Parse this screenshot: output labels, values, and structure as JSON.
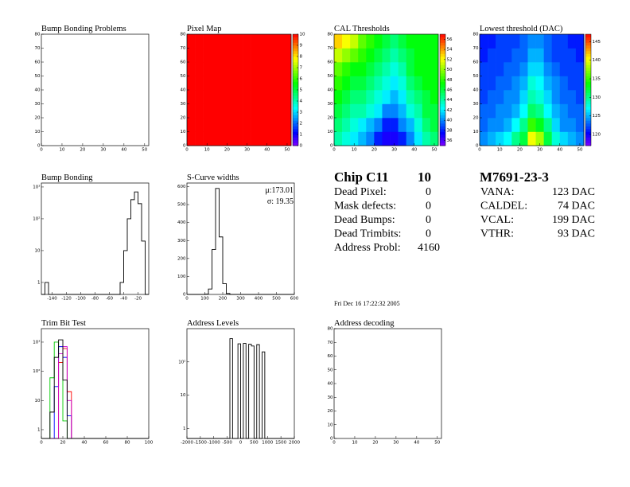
{
  "chart_data": [
    {
      "type": "heatmap",
      "title": "Bump Bonding Problems",
      "xlim": [
        0,
        52
      ],
      "ylim": [
        0,
        80
      ],
      "xticks": [
        0,
        10,
        20,
        30,
        40,
        50
      ],
      "yticks": [
        0,
        10,
        20,
        30,
        40,
        50,
        60,
        70,
        80
      ]
    },
    {
      "type": "heatmap",
      "title": "Pixel Map",
      "xlim": [
        0,
        52
      ],
      "ylim": [
        0,
        80
      ],
      "xticks": [
        0,
        10,
        20,
        30,
        40,
        50
      ],
      "yticks": [
        0,
        10,
        20,
        30,
        40,
        50,
        60,
        70,
        80
      ],
      "xbins": [
        0,
        4,
        8,
        12,
        16,
        20,
        24,
        28,
        32,
        36,
        40,
        44,
        48,
        52
      ],
      "ybins": [
        0,
        10,
        20,
        30,
        40,
        50,
        60,
        70,
        80
      ],
      "z": [
        [
          10,
          10,
          10,
          10,
          10,
          10,
          10,
          10,
          10,
          10,
          10,
          10,
          10
        ],
        [
          10,
          10,
          10,
          10,
          10,
          10,
          10,
          10,
          10,
          10,
          10,
          10,
          10
        ],
        [
          10,
          10,
          10,
          10,
          10,
          10,
          10,
          10,
          10,
          10,
          10,
          10,
          10
        ],
        [
          10,
          10,
          10,
          10,
          10,
          10,
          10,
          10,
          10,
          10,
          10,
          10,
          10
        ],
        [
          10,
          10,
          10,
          10,
          10,
          10,
          10,
          10,
          10,
          10,
          10,
          10,
          10
        ],
        [
          10,
          10,
          10,
          10,
          10,
          10,
          10,
          10,
          10,
          10,
          10,
          10,
          10
        ],
        [
          10,
          10,
          10,
          10,
          10,
          10,
          10,
          10,
          10,
          10,
          10,
          10,
          10
        ],
        [
          10,
          10,
          10,
          10,
          10,
          10,
          10,
          10,
          10,
          10,
          10,
          10,
          10
        ]
      ],
      "zlim": [
        0,
        10
      ],
      "zticks": [
        0,
        1,
        2,
        3,
        4,
        5,
        6,
        7,
        8,
        9,
        10
      ]
    },
    {
      "type": "heatmap",
      "title": "CAL Thresholds",
      "xlim": [
        0,
        52
      ],
      "ylim": [
        0,
        80
      ],
      "xticks": [
        0,
        10,
        20,
        30,
        40,
        50
      ],
      "yticks": [
        0,
        10,
        20,
        30,
        40,
        50,
        60,
        70,
        80
      ],
      "xbins": [
        0,
        4,
        8,
        12,
        16,
        20,
        24,
        28,
        32,
        36,
        40,
        44,
        48,
        52
      ],
      "ybins": [
        0,
        10,
        20,
        30,
        40,
        50,
        60,
        70,
        80
      ],
      "z": [
        [
          44,
          43,
          42,
          41,
          40,
          38,
          37,
          37,
          38,
          40,
          42,
          44,
          45
        ],
        [
          45,
          44,
          43,
          42,
          41,
          40,
          38,
          38,
          40,
          41,
          43,
          45,
          46
        ],
        [
          46,
          45,
          44,
          44,
          43,
          42,
          40,
          40,
          41,
          43,
          44,
          46,
          46
        ],
        [
          47,
          46,
          45,
          45,
          44,
          43,
          42,
          41,
          42,
          44,
          45,
          46,
          47
        ],
        [
          48,
          47,
          46,
          46,
          45,
          44,
          43,
          42,
          43,
          45,
          46,
          47,
          47
        ],
        [
          49,
          48,
          47,
          47,
          46,
          45,
          44,
          43,
          44,
          46,
          47,
          47,
          47
        ],
        [
          51,
          50,
          49,
          48,
          47,
          46,
          45,
          44,
          45,
          46,
          47,
          47,
          47
        ],
        [
          53,
          52,
          51,
          49,
          48,
          47,
          46,
          45,
          46,
          47,
          47,
          47,
          47
        ]
      ],
      "zlim": [
        35,
        57
      ],
      "zticks": [
        36,
        38,
        40,
        42,
        44,
        46,
        48,
        50,
        52,
        54,
        56
      ]
    },
    {
      "type": "heatmap",
      "title": "Lowest threshold (DAC)",
      "xlim": [
        0,
        52
      ],
      "ylim": [
        0,
        80
      ],
      "xticks": [
        0,
        10,
        20,
        30,
        40,
        50
      ],
      "yticks": [
        0,
        10,
        20,
        30,
        40,
        50,
        60,
        70,
        80
      ],
      "xbins": [
        0,
        4,
        8,
        12,
        16,
        20,
        24,
        28,
        32,
        36,
        40,
        44,
        48,
        52
      ],
      "ybins": [
        0,
        10,
        20,
        30,
        40,
        50,
        60,
        70,
        80
      ],
      "z": [
        [
          124,
          125,
          126,
          127,
          130,
          132,
          140,
          138,
          132,
          128,
          126,
          125,
          124
        ],
        [
          123,
          124,
          124,
          125,
          127,
          130,
          135,
          133,
          130,
          126,
          124,
          124,
          123
        ],
        [
          123,
          123,
          124,
          124,
          125,
          127,
          131,
          130,
          127,
          125,
          124,
          123,
          123
        ],
        [
          122,
          123,
          123,
          124,
          124,
          126,
          129,
          128,
          126,
          124,
          123,
          123,
          122
        ],
        [
          122,
          122,
          123,
          123,
          124,
          125,
          128,
          127,
          125,
          124,
          123,
          122,
          122
        ],
        [
          122,
          122,
          122,
          123,
          123,
          124,
          126,
          126,
          124,
          123,
          122,
          122,
          122
        ],
        [
          121,
          122,
          122,
          122,
          123,
          123,
          125,
          125,
          123,
          122,
          122,
          122,
          121
        ],
        [
          121,
          121,
          122,
          122,
          122,
          123,
          124,
          124,
          123,
          122,
          122,
          121,
          121
        ]
      ],
      "zlim": [
        117,
        147
      ],
      "zticks": [
        120,
        125,
        130,
        135,
        140,
        145
      ]
    },
    {
      "type": "histogram",
      "title": "Bump Bonding",
      "log_y": true,
      "xlim": [
        -155,
        -5
      ],
      "ylim": [
        0.42,
        1330
      ],
      "xticks": [
        -140,
        -120,
        -100,
        -80,
        -60,
        -40,
        -20
      ],
      "yticks": [
        1,
        10,
        {
          "value": 100,
          "label": "10²"
        },
        {
          "value": 1000,
          "label": "10³"
        }
      ],
      "bins": [
        -155,
        -150,
        -145,
        -140,
        -135,
        -130,
        -125,
        -120,
        -115,
        -110,
        -105,
        -100,
        -95,
        -90,
        -85,
        -80,
        -75,
        -70,
        -65,
        -60,
        -55,
        -50,
        -45,
        -40,
        -35,
        -30,
        -25,
        -20,
        -15,
        -10,
        -5
      ],
      "series": [
        {
          "color": "#000000",
          "values": [
            0,
            1,
            0,
            0,
            0,
            0,
            0,
            0,
            0,
            0,
            0,
            0,
            0,
            0,
            0,
            0,
            0,
            0,
            0,
            0,
            0,
            0,
            1,
            10,
            100,
            400,
            700,
            300,
            20,
            0
          ]
        }
      ]
    },
    {
      "type": "histogram",
      "title": "S-Curve widths",
      "log_y": false,
      "xlim": [
        0,
        600
      ],
      "ylim": [
        0,
        620
      ],
      "xticks": [
        0,
        100,
        200,
        300,
        400,
        500,
        600
      ],
      "yticks": [
        0,
        100,
        200,
        300,
        400,
        500,
        600
      ],
      "bins": [
        0,
        20,
        40,
        60,
        80,
        100,
        120,
        140,
        160,
        180,
        200,
        220,
        240,
        260,
        280,
        300,
        320,
        340,
        360,
        380,
        400,
        420,
        440,
        460,
        480,
        500,
        520,
        540,
        560,
        580,
        600
      ],
      "series": [
        {
          "color": "#000000",
          "values": [
            0,
            0,
            0,
            0,
            0,
            2,
            30,
            250,
            590,
            320,
            60,
            5,
            0,
            0,
            0,
            0,
            0,
            0,
            0,
            0,
            0,
            0,
            0,
            0,
            0,
            0,
            0,
            0,
            0,
            0
          ]
        }
      ],
      "stats": [
        "μ:173.01",
        "σ: 19.35"
      ]
    },
    {
      "type": "histogram",
      "title": "Trim Bit Test",
      "log_y": true,
      "xlim": [
        0,
        100
      ],
      "ylim": [
        0.5,
        2900
      ],
      "xticks": [
        0,
        20,
        40,
        60,
        80,
        100
      ],
      "yticks": [
        1,
        10,
        {
          "value": 100,
          "label": "10²"
        },
        {
          "value": 1000,
          "label": "10³"
        }
      ],
      "bins": [
        0,
        4,
        8,
        12,
        16,
        20,
        24,
        28,
        32,
        36,
        40,
        44,
        48,
        52,
        56,
        60,
        64,
        68,
        72,
        76,
        80,
        84,
        88,
        92,
        96,
        100
      ],
      "series": [
        {
          "color": "#00cc00",
          "values": [
            0,
            0,
            60,
            1000,
            200,
            2,
            0,
            0,
            0,
            0,
            0,
            0,
            0,
            0,
            0,
            0,
            0,
            0,
            0,
            0,
            0,
            0,
            0,
            0,
            0
          ]
        },
        {
          "color": "#0000ff",
          "values": [
            0,
            0,
            0,
            30,
            700,
            300,
            3,
            0,
            0,
            0,
            0,
            0,
            0,
            0,
            0,
            0,
            0,
            0,
            0,
            0,
            0,
            0,
            0,
            0,
            0
          ]
        },
        {
          "color": "#ff0000",
          "values": [
            0,
            0,
            0,
            0,
            200,
            600,
            20,
            0,
            0,
            0,
            0,
            0,
            0,
            0,
            0,
            0,
            0,
            0,
            0,
            0,
            0,
            0,
            0,
            0,
            0
          ]
        },
        {
          "color": "#cc00cc",
          "values": [
            0,
            0,
            0,
            0,
            400,
            700,
            10,
            0,
            0,
            0,
            0,
            0,
            0,
            0,
            0,
            0,
            0,
            0,
            0,
            0,
            0,
            0,
            0,
            0,
            0
          ]
        },
        {
          "color": "#000000",
          "values": [
            0,
            0,
            4,
            300,
            1200,
            50,
            0,
            0,
            0,
            0,
            0,
            0,
            0,
            0,
            0,
            0,
            0,
            0,
            0,
            0,
            0,
            0,
            0,
            0,
            0
          ]
        }
      ]
    },
    {
      "type": "histogram",
      "title": "Address Levels",
      "log_y": true,
      "xlim": [
        -2000,
        2000
      ],
      "ylim": [
        0.5,
        1000
      ],
      "xticks": [
        -2000,
        -1500,
        -1000,
        -500,
        0,
        500,
        1000,
        1500,
        2000
      ],
      "yticks": [
        1,
        10,
        {
          "value": 100,
          "label": "10²"
        }
      ],
      "bins": [
        -2000,
        -1900,
        -1800,
        -1700,
        -1600,
        -1500,
        -1400,
        -1300,
        -1200,
        -1100,
        -1000,
        -900,
        -800,
        -700,
        -600,
        -500,
        -400,
        -300,
        -200,
        -100,
        0,
        100,
        200,
        300,
        400,
        500,
        600,
        700,
        800,
        900,
        1000,
        1100,
        1200,
        1300,
        1400,
        1500,
        1600,
        1700,
        1800,
        1900,
        2000
      ],
      "series": [
        {
          "color": "#000000",
          "values": [
            0,
            0,
            0,
            0,
            0,
            0,
            0,
            0,
            0,
            0,
            0,
            0,
            0,
            0,
            0,
            0,
            500,
            0,
            0,
            350,
            0,
            360,
            0,
            340,
            300,
            0,
            330,
            0,
            200,
            0,
            0,
            0,
            0,
            0,
            0,
            0,
            0,
            0,
            0,
            0
          ]
        }
      ]
    },
    {
      "type": "heatmap",
      "title": "Address decoding",
      "xlim": [
        0,
        52
      ],
      "ylim": [
        0,
        80
      ],
      "xticks": [
        0,
        10,
        20,
        30,
        40,
        50
      ],
      "yticks": [
        0,
        10,
        20,
        30,
        40,
        50,
        60,
        70,
        80
      ]
    }
  ],
  "chip_info": {
    "title": "Chip C11",
    "number": 10,
    "rows": [
      {
        "label": "Dead Pixel:",
        "value": 0
      },
      {
        "label": "Mask defects:",
        "value": 0
      },
      {
        "label": "Dead Bumps:",
        "value": 0
      },
      {
        "label": "Dead Trimbits:",
        "value": 0
      },
      {
        "label": "Address Probl:",
        "value": 4160
      }
    ]
  },
  "module_info": {
    "title": "M7691-23-3",
    "rows": [
      {
        "label": "VANA:",
        "value": "123 DAC"
      },
      {
        "label": "CALDEL:",
        "value": "74 DAC"
      },
      {
        "label": "VCAL:",
        "value": "199 DAC"
      },
      {
        "label": "VTHR:",
        "value": "93 DAC"
      }
    ]
  },
  "date": "Fri Dec 16 17:22:32 2005"
}
